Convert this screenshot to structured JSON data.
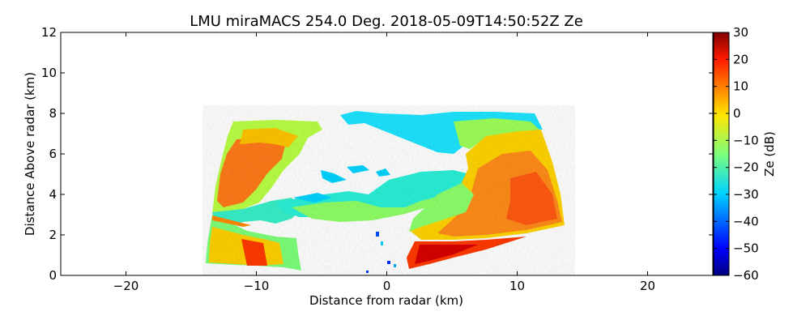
{
  "chart_data": {
    "type": "heatmap",
    "title": "LMU miraMACS 254.0 Deg. 2018-05-09T14:50:52Z  Ze",
    "xlabel": "Distance from radar (km)",
    "ylabel": "Distance Above radar  (km)",
    "xlim": [
      -25,
      25
    ],
    "ylim": [
      0,
      12
    ],
    "x_ticks": [
      -20,
      -10,
      0,
      10,
      20
    ],
    "x_tick_labels": [
      "−20",
      "−10",
      "0",
      "10",
      "20"
    ],
    "y_ticks": [
      0,
      2,
      4,
      6,
      8,
      10,
      12
    ],
    "y_tick_labels": [
      "0",
      "2",
      "4",
      "6",
      "8",
      "10",
      "12"
    ],
    "colorbar": {
      "label": "Ze (dB)",
      "range": [
        -60,
        30
      ],
      "ticks": [
        30,
        20,
        10,
        0,
        -10,
        -20,
        -30,
        -40,
        -50,
        -60
      ],
      "tick_labels": [
        "30",
        "20",
        "10",
        "0",
        "−10",
        "−20",
        "−30",
        "−40",
        "−50",
        "−60"
      ],
      "colormap": "jet"
    },
    "regions": [
      {
        "name": "upper-left cloud core",
        "x_range": [
          -13,
          -8
        ],
        "y_range": [
          2.5,
          7.5
        ],
        "ze_db_range": [
          -5,
          15
        ]
      },
      {
        "name": "lower-left precipitation",
        "x_range": [
          -14,
          -6.5
        ],
        "y_range": [
          0.3,
          2.4
        ],
        "ze_db_range": [
          0,
          25
        ]
      },
      {
        "name": "upper cloud layer",
        "x_range": [
          -3.5,
          11.5
        ],
        "y_range": [
          5.5,
          8
        ],
        "ze_db_range": [
          -30,
          -15
        ]
      },
      {
        "name": "right cloud body",
        "x_range": [
          4,
          13.5
        ],
        "y_range": [
          2.2,
          7
        ],
        "ze_db_range": [
          0,
          15
        ]
      },
      {
        "name": "lower-right precipitation",
        "x_range": [
          1.5,
          8
        ],
        "y_range": [
          0.3,
          1.8
        ],
        "ze_db_range": [
          15,
          25
        ]
      },
      {
        "name": "mid-level band",
        "x_range": [
          -9,
          6
        ],
        "y_range": [
          2.8,
          5
        ],
        "ze_db_range": [
          -30,
          -10
        ]
      }
    ]
  }
}
